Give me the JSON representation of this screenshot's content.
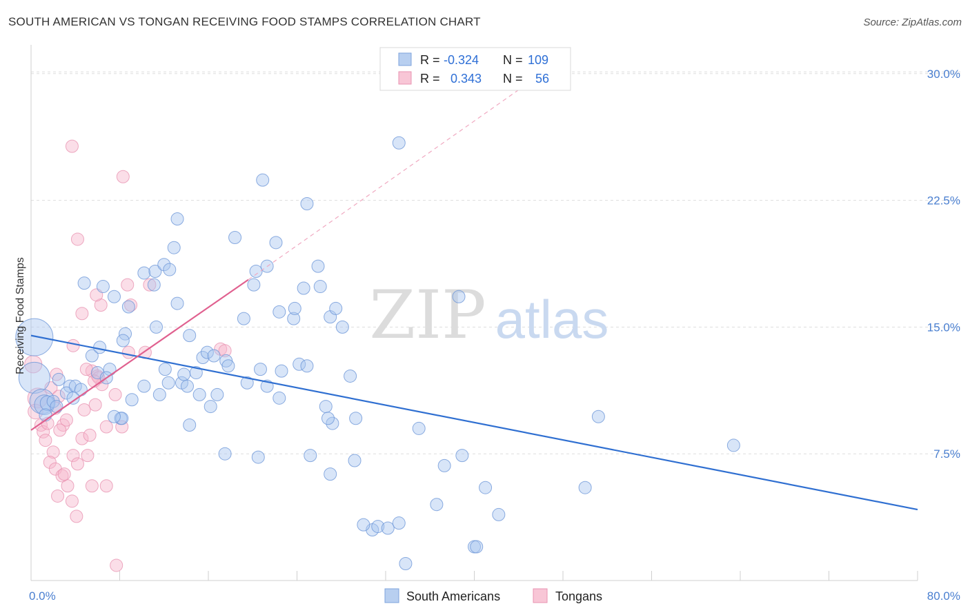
{
  "title": "SOUTH AMERICAN VS TONGAN RECEIVING FOOD STAMPS CORRELATION CHART",
  "source": "Source: ZipAtlas.com",
  "watermark": {
    "zip": "ZIP",
    "atlas": "atlas"
  },
  "colors": {
    "blue": "#2f6fd1",
    "blue_fill": "#a9c6ef",
    "pink": "#e0608f",
    "pink_fill": "#f6b6cb"
  },
  "legend": {
    "r_label": "R =",
    "n_label": "N =",
    "rows": [
      {
        "r": "-0.324",
        "n": "109"
      },
      {
        "r": "0.343",
        "n": "56"
      }
    ]
  },
  "bottom_legend": [
    "South Americans",
    "Tongans"
  ],
  "chart_data": {
    "type": "scatter",
    "ylabel": "Receiving Food Stamps",
    "xlim": [
      0,
      80
    ],
    "ylim": [
      0,
      31.5
    ],
    "x_tick_labels": [
      "0.0%",
      "80.0%"
    ],
    "y_ticks": [
      7.5,
      15.0,
      22.5,
      30.0
    ],
    "y_tick_labels": [
      "7.5%",
      "15.0%",
      "22.5%",
      "30.0%"
    ],
    "grid": true,
    "series": [
      {
        "name": "South Americans",
        "trend": {
          "x": [
            0,
            80
          ],
          "y": [
            14.5,
            4.2
          ]
        },
        "points": [
          [
            0.3,
            14.4,
            3
          ],
          [
            0.3,
            12.0,
            2.5
          ],
          [
            1,
            10.6,
            2
          ],
          [
            1.2,
            10.4,
            1.6
          ],
          [
            1.5,
            10.5,
            1.2
          ],
          [
            1.3,
            9.8,
            1
          ],
          [
            2,
            10.6,
            1
          ],
          [
            2.3,
            10.3,
            1
          ],
          [
            2.5,
            11.9,
            1
          ],
          [
            3.5,
            11.5,
            1
          ],
          [
            3.2,
            11.1,
            1
          ],
          [
            4,
            11.5,
            1
          ],
          [
            4.5,
            11.3,
            1
          ],
          [
            3.8,
            10.8,
            1
          ],
          [
            4.8,
            17.6,
            1
          ],
          [
            6.5,
            17.4,
            1
          ],
          [
            7.5,
            16.8,
            1
          ],
          [
            8.8,
            16.2,
            1
          ],
          [
            5.5,
            13.3,
            1
          ],
          [
            6.2,
            13.8,
            1
          ],
          [
            6,
            12.3,
            1
          ],
          [
            7.1,
            12.5,
            1
          ],
          [
            6.8,
            12.0,
            1
          ],
          [
            8.5,
            14.6,
            1
          ],
          [
            8.3,
            14.2,
            1
          ],
          [
            8.1,
            9.6,
            1
          ],
          [
            10.2,
            18.2,
            1
          ],
          [
            11.1,
            17.5,
            1
          ],
          [
            11.2,
            18.3,
            1
          ],
          [
            12,
            18.7,
            1
          ],
          [
            12.5,
            18.4,
            1
          ],
          [
            12.9,
            19.7,
            1
          ],
          [
            13.2,
            21.4,
            1
          ],
          [
            11.3,
            15.0,
            1
          ],
          [
            12.1,
            12.5,
            1
          ],
          [
            12.4,
            11.7,
            1
          ],
          [
            13.6,
            11.7,
            1
          ],
          [
            14.1,
            11.5,
            1
          ],
          [
            13.8,
            12.2,
            1
          ],
          [
            13.2,
            16.4,
            1
          ],
          [
            14.3,
            14.5,
            1
          ],
          [
            14.9,
            12.3,
            1
          ],
          [
            15.5,
            13.2,
            1
          ],
          [
            15.9,
            13.5,
            1
          ],
          [
            16.5,
            13.3,
            1
          ],
          [
            17.6,
            13.0,
            1
          ],
          [
            17.8,
            12.7,
            1
          ],
          [
            19.2,
            15.5,
            1
          ],
          [
            18.4,
            20.3,
            1
          ],
          [
            20.3,
            18.3,
            1
          ],
          [
            20.1,
            17.5,
            1
          ],
          [
            20.9,
            23.7,
            1
          ],
          [
            21.3,
            18.6,
            1
          ],
          [
            22.1,
            20.0,
            1
          ],
          [
            22.4,
            15.9,
            1
          ],
          [
            23.7,
            15.5,
            1
          ],
          [
            22.6,
            12.4,
            1
          ],
          [
            24.2,
            12.8,
            1
          ],
          [
            24.9,
            12.7,
            1
          ],
          [
            23.8,
            16.1,
            1
          ],
          [
            24.6,
            17.3,
            1
          ],
          [
            24.9,
            22.3,
            1
          ],
          [
            25.9,
            18.6,
            1
          ],
          [
            26.1,
            17.4,
            1
          ],
          [
            27.0,
            15.6,
            1
          ],
          [
            27.5,
            16.1,
            1
          ],
          [
            28.1,
            15.0,
            1
          ],
          [
            28.8,
            12.1,
            1
          ],
          [
            20.7,
            12.5,
            1
          ],
          [
            21.3,
            11.5,
            1
          ],
          [
            19.5,
            11.7,
            1
          ],
          [
            16.8,
            11.0,
            1
          ],
          [
            16.2,
            10.3,
            1
          ],
          [
            15.2,
            11.0,
            1
          ],
          [
            14.3,
            9.2,
            1
          ],
          [
            11.6,
            11.0,
            1
          ],
          [
            10.2,
            11.5,
            1
          ],
          [
            9.1,
            10.7,
            1
          ],
          [
            8.2,
            9.6,
            1
          ],
          [
            7.5,
            9.7,
            1
          ],
          [
            22.4,
            10.8,
            1
          ],
          [
            26.6,
            10.3,
            1
          ],
          [
            27.2,
            9.3,
            1
          ],
          [
            26.8,
            9.6,
            1
          ],
          [
            29.3,
            9.6,
            1
          ],
          [
            17.5,
            7.5,
            1
          ],
          [
            20.5,
            7.3,
            1
          ],
          [
            25.2,
            7.4,
            1
          ],
          [
            27.0,
            6.3,
            1
          ],
          [
            29.2,
            7.1,
            1
          ],
          [
            30.8,
            3.0,
            1
          ],
          [
            31.3,
            3.2,
            1
          ],
          [
            32.2,
            3.1,
            1
          ],
          [
            30.0,
            3.3,
            1
          ],
          [
            33.2,
            3.4,
            1
          ],
          [
            33.8,
            1.0,
            1
          ],
          [
            36.6,
            4.5,
            1
          ],
          [
            37.3,
            6.8,
            1
          ],
          [
            38.9,
            7.4,
            1
          ],
          [
            40.0,
            2.0,
            1
          ],
          [
            40.2,
            2.0,
            1
          ],
          [
            41.0,
            5.5,
            1
          ],
          [
            42.2,
            3.9,
            1
          ],
          [
            38.6,
            16.8,
            1
          ],
          [
            33.2,
            25.9,
            1
          ],
          [
            50.0,
            5.5,
            1
          ],
          [
            51.2,
            9.7,
            1
          ],
          [
            63.4,
            8.0,
            1
          ],
          [
            35.0,
            9.0,
            1
          ]
        ]
      },
      {
        "name": "Tongans",
        "trend": {
          "x": [
            0,
            19.6
          ],
          "y": [
            8.9,
            17.8
          ]
        },
        "dashed_extension": {
          "x": [
            19.6,
            45
          ],
          "y": [
            17.8,
            29.5
          ]
        },
        "points": [
          [
            0.2,
            12.8,
            1.4
          ],
          [
            0.6,
            10.8,
            1.6
          ],
          [
            0.4,
            10.0,
            1.2
          ],
          [
            0.9,
            9.2,
            1
          ],
          [
            1.1,
            8.8,
            1
          ],
          [
            1.5,
            9.3,
            1
          ],
          [
            1.3,
            8.3,
            1
          ],
          [
            1.8,
            11.4,
            1
          ],
          [
            2.2,
            10.2,
            1
          ],
          [
            2.5,
            10.9,
            1
          ],
          [
            2.9,
            9.2,
            1
          ],
          [
            3.2,
            9.5,
            1
          ],
          [
            2.6,
            8.9,
            1
          ],
          [
            2.0,
            7.6,
            1
          ],
          [
            1.7,
            7.0,
            1
          ],
          [
            2.2,
            6.6,
            1
          ],
          [
            2.8,
            6.2,
            1
          ],
          [
            3.3,
            5.6,
            1
          ],
          [
            2.4,
            5.0,
            1
          ],
          [
            3.7,
            4.7,
            1
          ],
          [
            4.1,
            3.8,
            1
          ],
          [
            3.8,
            7.4,
            1
          ],
          [
            4.2,
            6.9,
            1
          ],
          [
            5.1,
            7.4,
            1
          ],
          [
            4.6,
            8.4,
            1
          ],
          [
            5.3,
            8.6,
            1
          ],
          [
            4.8,
            10.1,
            1
          ],
          [
            5.5,
            12.4,
            1
          ],
          [
            6.0,
            12.1,
            1
          ],
          [
            6.4,
            11.6,
            1
          ],
          [
            5.8,
            10.4,
            1
          ],
          [
            6.8,
            9.1,
            1
          ],
          [
            7.6,
            11.0,
            1
          ],
          [
            8.2,
            9.1,
            1
          ],
          [
            3.8,
            13.9,
            1
          ],
          [
            5.0,
            12.5,
            1
          ],
          [
            4.2,
            20.2,
            1
          ],
          [
            3.7,
            25.7,
            1
          ],
          [
            8.3,
            23.9,
            1
          ],
          [
            6.3,
            16.3,
            1
          ],
          [
            4.6,
            15.8,
            1
          ],
          [
            5.9,
            16.9,
            1
          ],
          [
            8.7,
            17.5,
            1
          ],
          [
            9.0,
            16.3,
            1
          ],
          [
            10.3,
            13.5,
            1
          ],
          [
            8.8,
            13.5,
            1
          ],
          [
            10.7,
            17.5,
            1
          ],
          [
            17.1,
            13.7,
            1
          ],
          [
            17.5,
            13.6,
            1
          ],
          [
            5.5,
            5.6,
            1
          ],
          [
            6.8,
            5.6,
            1
          ],
          [
            7.7,
            0.9,
            1
          ],
          [
            3.0,
            6.3,
            1
          ],
          [
            6.1,
            12.0,
            1
          ],
          [
            5.7,
            11.8,
            1
          ],
          [
            2.3,
            12.2,
            1
          ]
        ]
      }
    ]
  }
}
